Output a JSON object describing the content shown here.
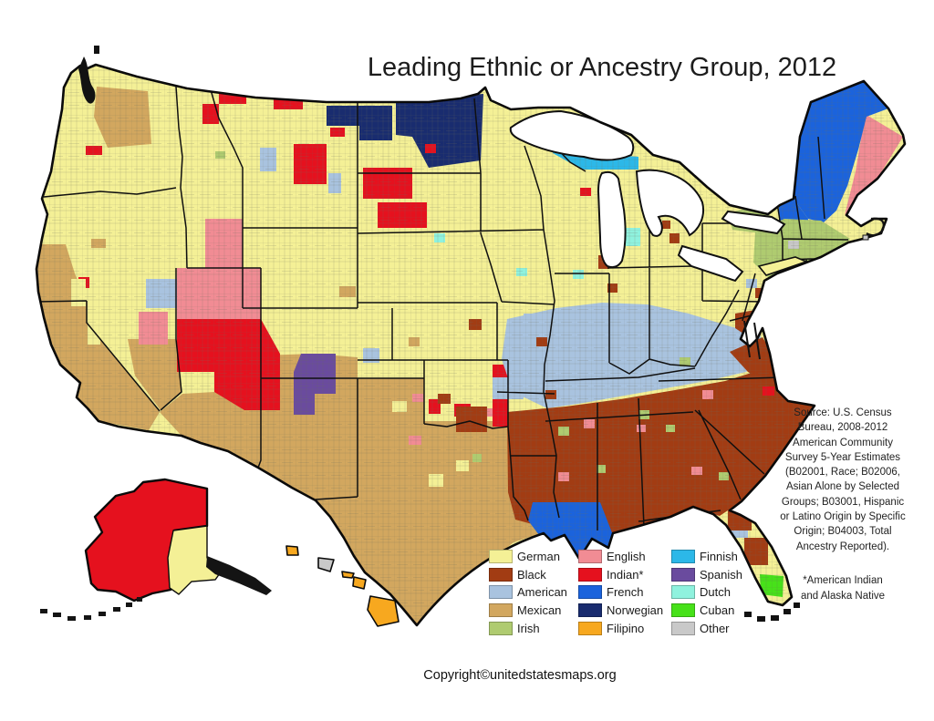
{
  "title": "Leading Ethnic or Ancestry Group, 2012",
  "legend": {
    "items": [
      {
        "label": "German",
        "color": "#F4F096",
        "key": "german"
      },
      {
        "label": "Black",
        "color": "#A23C13",
        "key": "black"
      },
      {
        "label": "American",
        "color": "#A9C3DF",
        "key": "american"
      },
      {
        "label": "Mexican",
        "color": "#D2A75F",
        "key": "mexican"
      },
      {
        "label": "Irish",
        "color": "#AFCB70",
        "key": "irish"
      },
      {
        "label": "English",
        "color": "#F18C94",
        "key": "english"
      },
      {
        "label": "Indian*",
        "color": "#E5111E",
        "key": "indian"
      },
      {
        "label": "French",
        "color": "#1B63DC",
        "key": "french"
      },
      {
        "label": "Norwegian",
        "color": "#192C6F",
        "key": "norwegian"
      },
      {
        "label": "Filipino",
        "color": "#F7A81F",
        "key": "filipino"
      },
      {
        "label": "Finnish",
        "color": "#2CB8E8",
        "key": "finnish"
      },
      {
        "label": "Spanish",
        "color": "#6A4B9E",
        "key": "spanish"
      },
      {
        "label": "Dutch",
        "color": "#8FF2DE",
        "key": "dutch"
      },
      {
        "label": "Cuban",
        "color": "#47E119",
        "key": "cuban"
      },
      {
        "label": "Other",
        "color": "#C9C9C9",
        "key": "other"
      }
    ]
  },
  "source": {
    "lines": [
      "Source:  U.S. Census",
      "Bureau, 2008-2012",
      "American Community",
      "Survey 5-Year Estimates",
      "(B02001, Race; B02006,",
      "Asian Alone by Selected",
      "Groups; B03001, Hispanic",
      "or Latino Origin by Specific",
      "Origin; B04003, Total",
      "Ancestry Reported)."
    ]
  },
  "note": {
    "lines": [
      "*American Indian",
      "and Alaska Native"
    ]
  },
  "copyright": "Copyright©unitedstatesmaps.org",
  "map": {
    "colors": {
      "german": "#F4F096",
      "black": "#A23C13",
      "american": "#A9C3DF",
      "mexican": "#D2A75F",
      "irish": "#AFCB70",
      "english": "#F18C94",
      "indian": "#E5111E",
      "french": "#1B63DC",
      "norwegian": "#192C6F",
      "filipino": "#F7A81F",
      "finnish": "#2CB8E8",
      "spanish": "#6A4B9E",
      "dutch": "#8FF2DE",
      "cuban": "#47E119",
      "other": "#C9C9C9"
    },
    "regions": [
      {
        "name": "mexican-california",
        "c": "mexican",
        "p": "40,268 72,268 82,300 95,332 95,355 175,452 163,472 108,462 84,436 58,392 46,345 40,300"
      },
      {
        "name": "mexican-southwest",
        "c": "mexican",
        "p": "235,392 285,390 345,388 392,392 392,415 465,415 465,462 540,462 557,470 561,542 596,584 563,595 520,630 457,686 428,652 400,628 377,590 346,549 283,513 199,478 175,452 200,432 235,430"
      },
      {
        "name": "mexican-washington",
        "c": "mexican",
        "p": "106,95 162,100 166,158 118,162 103,128"
      },
      {
        "name": "mexican-s-nevada",
        "c": "mexican",
        "p": "140,372 193,372 199,430 176,450 148,412"
      },
      {
        "name": "english-utah-idaho",
        "c": "english",
        "p": "225,240 266,240 266,294 286,294 286,350 194,350 194,294 225,294"
      },
      {
        "name": "english-nevada",
        "c": "english",
        "p": "152,342 184,342 184,378 152,378"
      },
      {
        "name": "english-maine-coast",
        "c": "english",
        "p": "950,126 990,150 962,196 938,220 926,236 938,188 944,152"
      },
      {
        "name": "english-nh",
        "c": "english",
        "p": "896,178 920,182 918,206 894,202"
      },
      {
        "name": "indian-navajo",
        "c": "indian",
        "p": "194,350 286,350 307,388 307,450 268,450 235,430 235,408 194,408"
      },
      {
        "name": "indian-sd-1",
        "c": "indian",
        "p": "398,184 452,184 452,218 398,218"
      },
      {
        "name": "indian-sd-2",
        "c": "indian",
        "p": "414,222 468,222 468,250 414,250"
      },
      {
        "name": "indian-oklahoma",
        "c": "indian",
        "p": "540,400 557,400 557,468 540,468"
      },
      {
        "name": "indian-montana-1",
        "c": "indian",
        "p": "240,99 270,99 270,114 240,114"
      },
      {
        "name": "indian-montana-2",
        "c": "indian",
        "p": "222,114 240,114 240,136 222,136"
      },
      {
        "name": "indian-montana-3",
        "c": "indian",
        "p": "300,107 332,107 332,120 300,120"
      },
      {
        "name": "indian-crow",
        "c": "indian",
        "p": "322,158 358,158 358,202 322,202"
      },
      {
        "name": "american-appalachia",
        "c": "american",
        "p": "556,350 610,338 660,332 710,334 755,344 800,358 832,366 846,390 818,408 775,418 730,426 685,434 640,442 600,448 562,430 550,394"
      },
      {
        "name": "black-deep-south",
        "c": "black",
        "p": "556,452 620,446 680,438 740,428 795,418 840,404 852,392 864,392 852,430 864,440 893,445 877,468 857,497 839,522 813,550 789,566 761,558 734,568 701,578 672,586 667,601 649,592 635,613 619,588 591,577 565,570 557,540"
      },
      {
        "name": "black-virginia",
        "c": "black",
        "p": "800,386 836,370 848,390 852,428 820,408"
      },
      {
        "name": "black-delmarva",
        "c": "black",
        "p": "806,344 828,340 836,356 824,372 806,360"
      },
      {
        "name": "french-louisiana",
        "c": "french",
        "p": "584,551 658,551 672,587 667,601 649,592 635,612 619,587 597,595 579,571"
      },
      {
        "name": "french-maine",
        "c": "french",
        "p": "870,218 877,150 889,112 947,89 974,119 950,128 941,164 929,204 917,231 903,244 886,240"
      },
      {
        "name": "french-vt-nh",
        "c": "french",
        "p": "854,224 870,218 886,240 883,260 866,262 854,244"
      },
      {
        "name": "norwegian-nd-west",
        "c": "norwegian",
        "p": "358,116 430,116 430,154 394,154 394,138 358,138"
      },
      {
        "name": "norwegian-nd-mn",
        "c": "norwegian",
        "p": "434,110 530,103 527,176 470,184 452,150 434,148"
      },
      {
        "name": "irish-new-england",
        "c": "irish",
        "p": "828,254 860,240 900,242 932,262 918,280 878,302 844,306 826,288"
      },
      {
        "name": "irish-upstate-ny",
        "c": "irish",
        "p": "798,234 828,226 850,240 834,256 803,252"
      },
      {
        "name": "finnish-upper-michigan",
        "c": "finnish",
        "p": "606,150 672,150 672,170 700,172 700,186 638,186 606,168"
      },
      {
        "name": "spanish-new-mexico",
        "c": "spanish",
        "p": "322,408 330,388 368,388 368,432 345,432 345,455 322,455"
      },
      {
        "name": "cuban-south-florida",
        "c": "cuban",
        "p": "833,630 859,632 858,655 834,652"
      }
    ],
    "patches": [
      [
        86,
        304,
        12,
        12,
        "indian"
      ],
      [
        94,
        160,
        18,
        10,
        "indian"
      ],
      [
        362,
        140,
        16,
        10,
        "indian"
      ],
      [
        466,
        158,
        12,
        10,
        "indian"
      ],
      [
        636,
        206,
        12,
        9,
        "indian"
      ],
      [
        836,
        424,
        13,
        10,
        "indian"
      ],
      [
        470,
        438,
        13,
        16,
        "indian"
      ],
      [
        498,
        443,
        18,
        14,
        "indian"
      ],
      [
        448,
        478,
        14,
        10,
        "english"
      ],
      [
        640,
        460,
        12,
        10,
        "english"
      ],
      [
        612,
        518,
        12,
        10,
        "english"
      ],
      [
        770,
        428,
        12,
        10,
        "english"
      ],
      [
        758,
        512,
        12,
        9,
        "english"
      ],
      [
        698,
        466,
        10,
        8,
        "english"
      ],
      [
        530,
        448,
        10,
        9,
        "english"
      ],
      [
        452,
        432,
        12,
        9,
        "english"
      ],
      [
        160,
        306,
        34,
        32,
        "american"
      ],
      [
        398,
        382,
        18,
        16,
        "american"
      ],
      [
        574,
        344,
        16,
        13,
        "american"
      ],
      [
        540,
        414,
        34,
        24,
        "american"
      ],
      [
        800,
        570,
        20,
        20,
        "american"
      ],
      [
        360,
        190,
        14,
        22,
        "american"
      ],
      [
        285,
        162,
        18,
        26,
        "american"
      ],
      [
        676,
        362,
        12,
        10,
        "american"
      ],
      [
        818,
        306,
        12,
        10,
        "american"
      ],
      [
        686,
        250,
        16,
        20,
        "dutch"
      ],
      [
        476,
        256,
        12,
        10,
        "dutch"
      ],
      [
        628,
        296,
        12,
        10,
        "dutch"
      ],
      [
        566,
        294,
        12,
        9,
        "dutch"
      ],
      [
        612,
        468,
        12,
        10,
        "irish"
      ],
      [
        654,
        510,
        10,
        9,
        "irish"
      ],
      [
        700,
        450,
        12,
        10,
        "irish"
      ],
      [
        730,
        466,
        10,
        8,
        "irish"
      ],
      [
        745,
        392,
        12,
        10,
        "irish"
      ],
      [
        236,
        166,
        11,
        8,
        "irish"
      ],
      [
        788,
        518,
        11,
        9,
        "irish"
      ],
      [
        518,
        498,
        10,
        9,
        "irish"
      ],
      [
        656,
        280,
        12,
        15,
        "black"
      ],
      [
        734,
        256,
        11,
        11,
        "black"
      ],
      [
        726,
        242,
        9,
        9,
        "black"
      ],
      [
        666,
        311,
        11,
        10,
        "black"
      ],
      [
        514,
        350,
        14,
        12,
        "black"
      ],
      [
        588,
        370,
        12,
        10,
        "black"
      ],
      [
        828,
        316,
        12,
        11,
        "black"
      ],
      [
        560,
        484,
        26,
        30,
        "black"
      ],
      [
        500,
        446,
        34,
        28,
        "black"
      ],
      [
        798,
        556,
        26,
        26,
        "black"
      ],
      [
        816,
        590,
        26,
        30,
        "black"
      ],
      [
        598,
        428,
        12,
        10,
        "black"
      ],
      [
        480,
        432,
        14,
        11,
        "black"
      ],
      [
        372,
        314,
        18,
        12,
        "mexican"
      ],
      [
        448,
        370,
        12,
        10,
        "mexican"
      ],
      [
        100,
        262,
        16,
        10,
        "mexican"
      ],
      [
        78,
        306,
        16,
        30,
        "german"
      ],
      [
        96,
        352,
        14,
        26,
        "german"
      ],
      [
        430,
        440,
        16,
        12,
        "german"
      ],
      [
        470,
        520,
        16,
        14,
        "german"
      ],
      [
        500,
        505,
        14,
        12,
        "german"
      ],
      [
        864,
        264,
        12,
        9,
        "other"
      ]
    ]
  }
}
